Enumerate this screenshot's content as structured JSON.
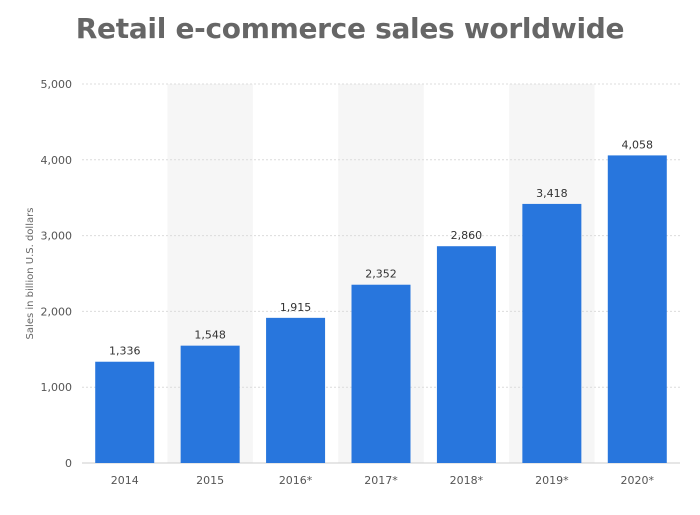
{
  "chart_data": {
    "type": "bar",
    "title": "Retail e-commerce sales worldwide",
    "xlabel": "",
    "ylabel": "Sales in billion U.S. dollars",
    "categories": [
      "2014",
      "2015",
      "2016*",
      "2017*",
      "2018*",
      "2019*",
      "2020*"
    ],
    "values": [
      1336,
      1548,
      1915,
      2352,
      2860,
      3418,
      4058
    ],
    "value_labels": [
      "1,336",
      "1,548",
      "1,915",
      "2,352",
      "2,860",
      "3,418",
      "4,058"
    ],
    "ylim": [
      0,
      5000
    ],
    "yticks": [
      0,
      1000,
      2000,
      3000,
      4000,
      5000
    ],
    "ytick_labels": [
      "0",
      "1,000",
      "2,000",
      "3,000",
      "4,000",
      "5,000"
    ],
    "grid": true,
    "alternating_band_shading": true,
    "bar_color": "#2876dd",
    "band_color": "#f6f6f6",
    "grid_color": "#dcdcdc",
    "title_color": "#666666"
  }
}
